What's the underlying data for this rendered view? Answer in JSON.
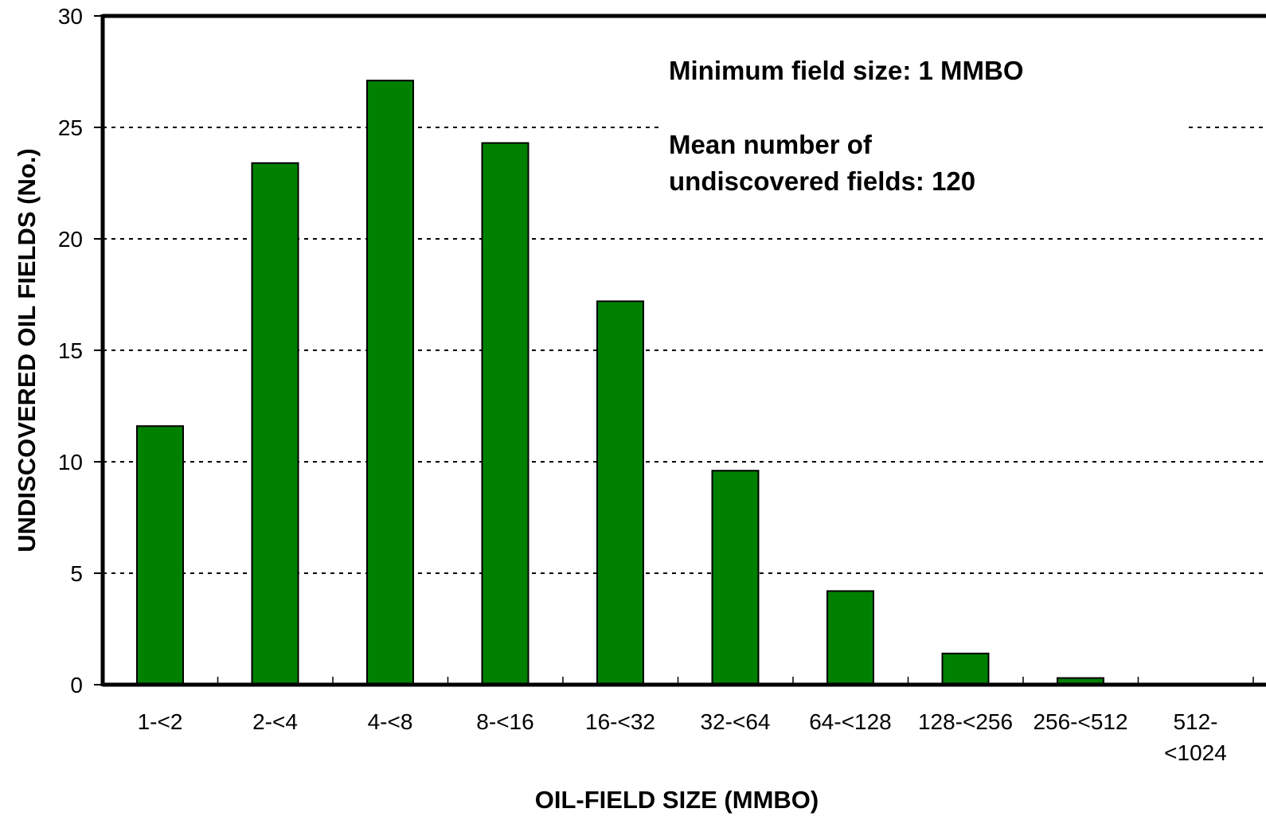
{
  "chart_data": {
    "type": "bar",
    "categories": [
      "1-<2",
      "2-<4",
      "4-<8",
      "8-<16",
      "16-<32",
      "32-<64",
      "64-<128",
      "128-<256",
      "256-<512",
      "512-<1024"
    ],
    "category_labels": [
      [
        "1-<2"
      ],
      [
        "2-<4"
      ],
      [
        "4-<8"
      ],
      [
        "8-<16"
      ],
      [
        "16-<32"
      ],
      [
        "32-<64"
      ],
      [
        "64-<128"
      ],
      [
        "128-<256"
      ],
      [
        "256-<512"
      ],
      [
        "512-",
        "<1024"
      ]
    ],
    "values": [
      11.6,
      23.4,
      27.1,
      24.3,
      17.2,
      9.6,
      4.2,
      1.4,
      0.3,
      0
    ],
    "xlabel": "OIL-FIELD SIZE (MMBO)",
    "ylabel": "UNDISCOVERED OIL FIELDS (No.)",
    "ylim": [
      0,
      30
    ],
    "yticks": [
      0,
      5,
      10,
      15,
      20,
      25,
      30
    ],
    "grid": "horizontal dotted",
    "bar_color": "#008000",
    "annotations": {
      "min_field_size": "Minimum field size: 1 MMBO",
      "mean_number_line1": "Mean number of",
      "mean_number_line2": "undiscovered fields: 120"
    }
  }
}
